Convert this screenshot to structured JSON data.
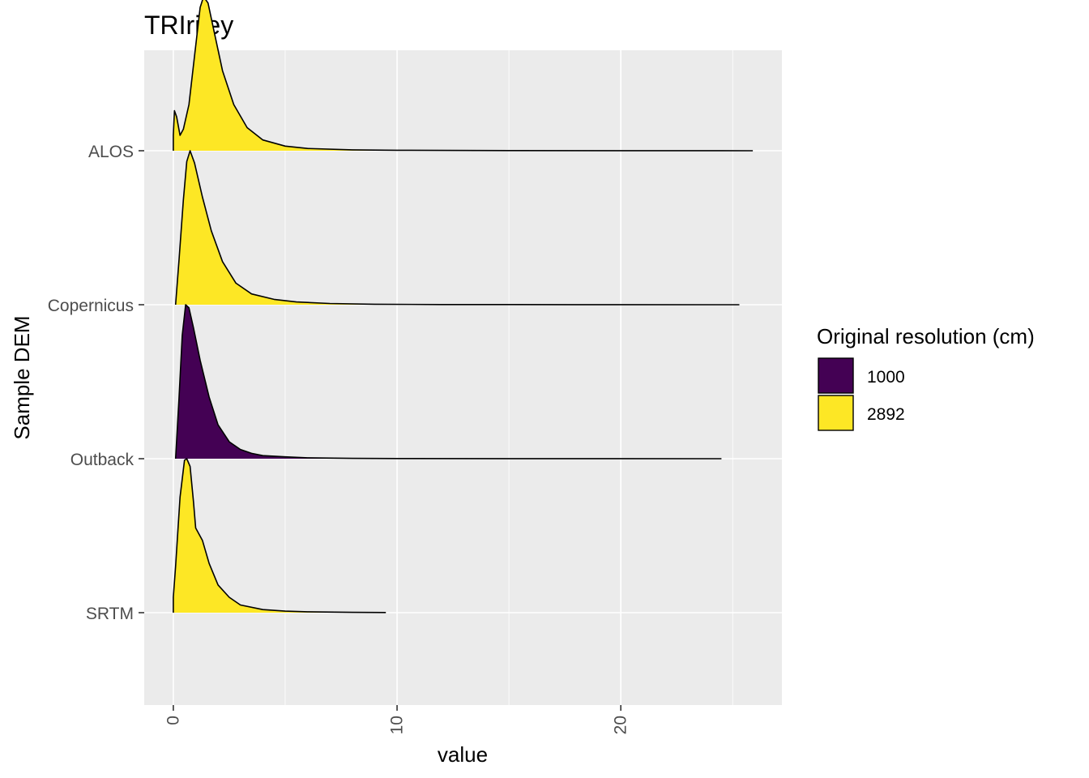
{
  "chart_data": {
    "type": "ridgeline",
    "title": "TRIriley",
    "xlabel": "value",
    "ylabel": "Sample DEM",
    "xlim": [
      -1.3,
      27.2
    ],
    "x_ticks": [
      0,
      10,
      20
    ],
    "x_tick_labels": [
      "0",
      "10",
      "20"
    ],
    "grid": true,
    "legend": {
      "position": "right",
      "title": "Original resolution (cm)",
      "items": [
        {
          "label": "1000",
          "color": "#440154"
        },
        {
          "label": "2892",
          "color": "#FDE725"
        }
      ]
    },
    "categories": [
      "SRTM",
      "Outback",
      "Copernicus",
      "ALOS"
    ],
    "series": [
      {
        "name": "SRTM",
        "group": "2892",
        "color": "#FDE725",
        "x_max": 9.5,
        "density": [
          [
            0,
            0.1
          ],
          [
            0.1,
            0.3
          ],
          [
            0.3,
            0.75
          ],
          [
            0.5,
            0.99
          ],
          [
            0.6,
            1.0
          ],
          [
            0.75,
            0.95
          ],
          [
            0.9,
            0.72
          ],
          [
            1.0,
            0.55
          ],
          [
            1.3,
            0.47
          ],
          [
            1.6,
            0.32
          ],
          [
            2.0,
            0.18
          ],
          [
            2.5,
            0.1
          ],
          [
            3.0,
            0.05
          ],
          [
            4.0,
            0.02
          ],
          [
            5.0,
            0.01
          ],
          [
            6.0,
            0.006
          ],
          [
            8.0,
            0.002
          ],
          [
            9.5,
            0.001
          ]
        ]
      },
      {
        "name": "Outback",
        "group": "1000",
        "color": "#440154",
        "x_max": 24.5,
        "density": [
          [
            0.1,
            0.0
          ],
          [
            0.25,
            0.38
          ],
          [
            0.4,
            0.8
          ],
          [
            0.55,
            1.0
          ],
          [
            0.7,
            0.98
          ],
          [
            0.9,
            0.85
          ],
          [
            1.2,
            0.64
          ],
          [
            1.6,
            0.4
          ],
          [
            2.0,
            0.22
          ],
          [
            2.5,
            0.11
          ],
          [
            3.0,
            0.06
          ],
          [
            3.5,
            0.035
          ],
          [
            4.0,
            0.02
          ],
          [
            5.0,
            0.012
          ],
          [
            6.0,
            0.006
          ],
          [
            8.0,
            0.002
          ],
          [
            10.0,
            0.001
          ],
          [
            15.0,
            0.0003
          ],
          [
            24.5,
            0.0
          ]
        ]
      },
      {
        "name": "Copernicus",
        "group": "2892",
        "color": "#FDE725",
        "x_max": 25.3,
        "density": [
          [
            0.1,
            0.0
          ],
          [
            0.25,
            0.28
          ],
          [
            0.45,
            0.68
          ],
          [
            0.6,
            0.93
          ],
          [
            0.75,
            1.0
          ],
          [
            0.95,
            0.92
          ],
          [
            1.3,
            0.7
          ],
          [
            1.7,
            0.48
          ],
          [
            2.2,
            0.28
          ],
          [
            2.8,
            0.14
          ],
          [
            3.5,
            0.07
          ],
          [
            4.5,
            0.035
          ],
          [
            5.5,
            0.018
          ],
          [
            7.0,
            0.008
          ],
          [
            9.0,
            0.003
          ],
          [
            12.0,
            0.001
          ],
          [
            18.0,
            0.0003
          ],
          [
            25.3,
            0.0
          ]
        ]
      },
      {
        "name": "ALOS",
        "group": "2892",
        "color": "#FDE725",
        "x_max": 25.9,
        "density": [
          [
            0.0,
            0.1
          ],
          [
            0.05,
            0.26
          ],
          [
            0.15,
            0.22
          ],
          [
            0.3,
            0.1
          ],
          [
            0.45,
            0.14
          ],
          [
            0.7,
            0.3
          ],
          [
            1.0,
            0.68
          ],
          [
            1.2,
            0.93
          ],
          [
            1.35,
            1.0
          ],
          [
            1.55,
            0.96
          ],
          [
            1.8,
            0.79
          ],
          [
            2.2,
            0.52
          ],
          [
            2.7,
            0.3
          ],
          [
            3.3,
            0.15
          ],
          [
            4.0,
            0.07
          ],
          [
            5.0,
            0.03
          ],
          [
            6.0,
            0.015
          ],
          [
            8.0,
            0.006
          ],
          [
            10.0,
            0.003
          ],
          [
            15.0,
            0.001
          ],
          [
            20.0,
            0.0003
          ],
          [
            25.9,
            0.0
          ]
        ]
      }
    ]
  }
}
